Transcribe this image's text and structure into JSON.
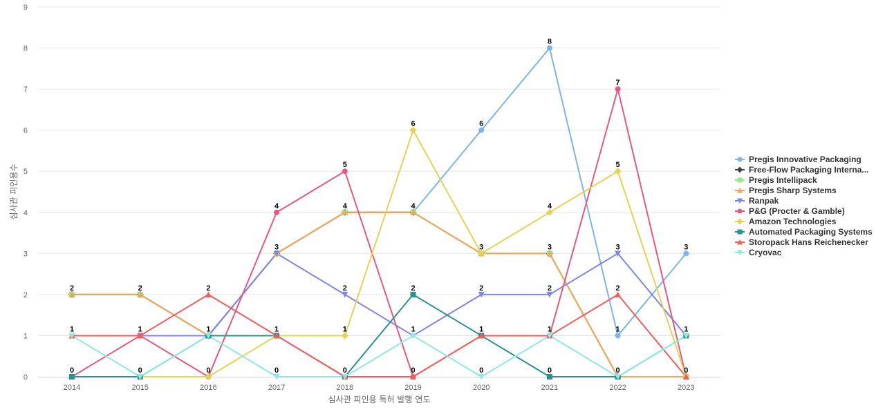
{
  "chart_data": {
    "type": "line",
    "title": "",
    "xlabel": "심사관 피인용 특허 발행 연도",
    "ylabel": "심사관 피인용수",
    "categories": [
      "2014",
      "2015",
      "2016",
      "2017",
      "2018",
      "2019",
      "2020",
      "2021",
      "2022",
      "2023"
    ],
    "ylim": [
      0,
      9
    ],
    "yticks": [
      0,
      1,
      2,
      3,
      4,
      5,
      6,
      7,
      8,
      9
    ],
    "grid": true,
    "legend_position": "right",
    "series": [
      {
        "name": "Pregis Innovative Packaging",
        "color": "#7cb5ec",
        "marker": "circle",
        "values": [
          2,
          2,
          1,
          3,
          4,
          4,
          6,
          8,
          1,
          3
        ]
      },
      {
        "name": "Free-Flow Packaging Interna...",
        "color": "#434348",
        "marker": "diamond",
        "values": [
          2,
          2,
          1,
          3,
          4,
          4,
          3,
          3,
          0,
          0
        ]
      },
      {
        "name": "Pregis Intellipack",
        "color": "#90ed7d",
        "marker": "square",
        "values": [
          2,
          2,
          1,
          3,
          4,
          4,
          3,
          3,
          0,
          0
        ]
      },
      {
        "name": "Pregis Sharp Systems",
        "color": "#f7a35c",
        "marker": "triangle",
        "values": [
          2,
          2,
          1,
          3,
          4,
          4,
          3,
          3,
          0,
          0
        ]
      },
      {
        "name": "Ranpak",
        "color": "#8085e9",
        "marker": "triangle-down",
        "values": [
          1,
          1,
          1,
          3,
          2,
          1,
          2,
          2,
          3,
          1
        ]
      },
      {
        "name": "P&G (Procter & Gamble)",
        "color": "#e8587e",
        "marker": "circle",
        "values": [
          0,
          1,
          0,
          4,
          5,
          0,
          1,
          1,
          7,
          0
        ]
      },
      {
        "name": "Amazon Technologies",
        "color": "#e4d354",
        "marker": "diamond",
        "values": [
          0,
          0,
          0,
          1,
          1,
          6,
          3,
          4,
          5,
          0
        ]
      },
      {
        "name": "Automated Packaging Systems",
        "color": "#2b908f",
        "marker": "square",
        "values": [
          0,
          0,
          1,
          1,
          0,
          2,
          1,
          0,
          0,
          1
        ]
      },
      {
        "name": "Storopack Hans Reichenecker",
        "color": "#f45b5b",
        "marker": "triangle",
        "values": [
          1,
          1,
          2,
          1,
          0,
          0,
          1,
          1,
          2,
          0
        ]
      },
      {
        "name": "Cryovac",
        "color": "#91e8e1",
        "marker": "triangle-down",
        "values": [
          1,
          0,
          1,
          0,
          0,
          1,
          0,
          1,
          0,
          1
        ]
      }
    ],
    "data_labels": [
      {
        "category": "2014",
        "value": 2,
        "text": "2"
      },
      {
        "category": "2014",
        "value": 1,
        "text": "1"
      },
      {
        "category": "2014",
        "value": 0,
        "text": "0"
      },
      {
        "category": "2015",
        "value": 2,
        "text": "2"
      },
      {
        "category": "2015",
        "value": 1,
        "text": "1"
      },
      {
        "category": "2015",
        "value": 0,
        "text": "0"
      },
      {
        "category": "2016",
        "value": 2,
        "text": "2"
      },
      {
        "category": "2016",
        "value": 1,
        "text": "1"
      },
      {
        "category": "2016",
        "value": 0,
        "text": "0"
      },
      {
        "category": "2017",
        "value": 4,
        "text": "4"
      },
      {
        "category": "2017",
        "value": 3,
        "text": "3"
      },
      {
        "category": "2017",
        "value": 1,
        "text": "1"
      },
      {
        "category": "2017",
        "value": 0,
        "text": "0"
      },
      {
        "category": "2018",
        "value": 5,
        "text": "5"
      },
      {
        "category": "2018",
        "value": 4,
        "text": "4"
      },
      {
        "category": "2018",
        "value": 2,
        "text": "2"
      },
      {
        "category": "2018",
        "value": 1,
        "text": "1"
      },
      {
        "category": "2018",
        "value": 0,
        "text": "0"
      },
      {
        "category": "2019",
        "value": 6,
        "text": "6"
      },
      {
        "category": "2019",
        "value": 4,
        "text": "4"
      },
      {
        "category": "2019",
        "value": 2,
        "text": "2"
      },
      {
        "category": "2019",
        "value": 1,
        "text": "1"
      },
      {
        "category": "2019",
        "value": 0,
        "text": "0"
      },
      {
        "category": "2020",
        "value": 6,
        "text": "6"
      },
      {
        "category": "2020",
        "value": 3,
        "text": "3"
      },
      {
        "category": "2020",
        "value": 2,
        "text": "2"
      },
      {
        "category": "2020",
        "value": 1,
        "text": "1"
      },
      {
        "category": "2020",
        "value": 0,
        "text": "0"
      },
      {
        "category": "2021",
        "value": 8,
        "text": "8"
      },
      {
        "category": "2021",
        "value": 4,
        "text": "4"
      },
      {
        "category": "2021",
        "value": 3,
        "text": "3"
      },
      {
        "category": "2021",
        "value": 2,
        "text": "2"
      },
      {
        "category": "2021",
        "value": 1,
        "text": "1"
      },
      {
        "category": "2021",
        "value": 0,
        "text": "0"
      },
      {
        "category": "2022",
        "value": 7,
        "text": "7"
      },
      {
        "category": "2022",
        "value": 5,
        "text": "5"
      },
      {
        "category": "2022",
        "value": 3,
        "text": "3"
      },
      {
        "category": "2022",
        "value": 2,
        "text": "2"
      },
      {
        "category": "2022",
        "value": 1,
        "text": "1"
      },
      {
        "category": "2022",
        "value": 0,
        "text": "0"
      },
      {
        "category": "2023",
        "value": 3,
        "text": "3"
      },
      {
        "category": "2023",
        "value": 1,
        "text": "1"
      },
      {
        "category": "2023",
        "value": 0,
        "text": "0"
      }
    ],
    "gridline_color": "#e6e6e6",
    "axis_line_color": "#ccd6eb"
  }
}
